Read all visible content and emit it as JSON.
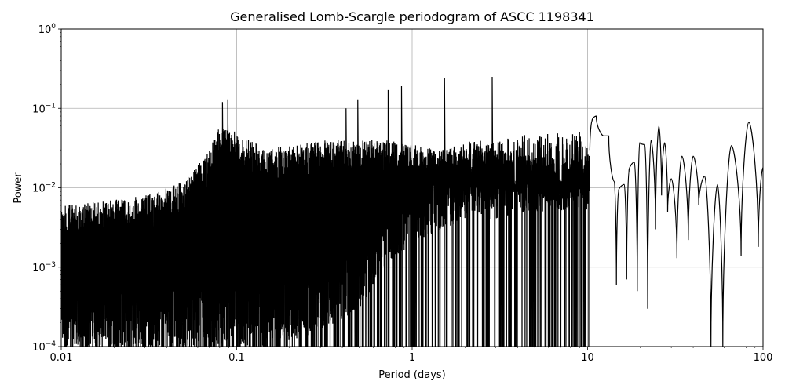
{
  "chart_data": {
    "type": "line",
    "title": "Generalised Lomb-Scargle periodogram of ASCC 1198341",
    "xlabel": "Period (days)",
    "ylabel": "Power",
    "xscale": "log",
    "yscale": "log",
    "xlim": [
      0.01,
      100
    ],
    "ylim": [
      0.0001,
      1
    ],
    "grid": true,
    "legend": null,
    "x_ticks": [
      {
        "value": 0.01,
        "label": "0.01"
      },
      {
        "value": 0.1,
        "label": "0.1"
      },
      {
        "value": 1,
        "label": "1"
      },
      {
        "value": 10,
        "label": "10"
      },
      {
        "value": 100,
        "label": "100"
      }
    ],
    "y_ticks": [
      {
        "value": 1,
        "base": "10",
        "exp": "0"
      },
      {
        "value": 0.1,
        "base": "10",
        "exp": "−1"
      },
      {
        "value": 0.01,
        "base": "10",
        "exp": "−2"
      },
      {
        "value": 0.001,
        "base": "10",
        "exp": "−3"
      },
      {
        "value": 0.0001,
        "base": "10",
        "exp": "−4"
      }
    ],
    "line_color": "#000000",
    "grid_color": "#b0b0b0",
    "noise_envelope": {
      "description": "Dense unresolved oscillation envelope (upper peak level vs period)",
      "period": [
        0.01,
        0.02,
        0.03,
        0.05,
        0.07,
        0.08,
        0.1,
        0.15,
        0.2,
        0.3,
        0.5,
        0.7,
        1.0,
        1.5,
        2.0,
        3.0,
        5.0,
        7.0,
        10.0
      ],
      "upper": [
        0.006,
        0.007,
        0.008,
        0.012,
        0.03,
        0.06,
        0.05,
        0.03,
        0.035,
        0.04,
        0.04,
        0.04,
        0.035,
        0.03,
        0.03,
        0.03,
        0.025,
        0.02,
        0.03
      ],
      "lower_fill": [
        0.0001,
        0.0001,
        0.0001,
        0.0001,
        0.0001,
        0.0001,
        0.0001,
        0.0001,
        0.00012,
        0.00015,
        0.0003,
        0.001,
        0.002,
        0.003,
        0.004,
        0.004,
        0.005,
        0.005,
        0.005
      ]
    },
    "notable_peaks": [
      {
        "period": 0.083,
        "power": 0.12
      },
      {
        "period": 0.089,
        "power": 0.13
      },
      {
        "period": 0.42,
        "power": 0.1
      },
      {
        "period": 0.49,
        "power": 0.13
      },
      {
        "period": 0.73,
        "power": 0.17
      },
      {
        "period": 0.87,
        "power": 0.19
      },
      {
        "period": 1.53,
        "power": 0.24
      },
      {
        "period": 2.86,
        "power": 0.25
      }
    ],
    "long_period_peaks": [
      {
        "period": 10.6,
        "power": 0.07
      },
      {
        "period": 11.2,
        "power": 0.08
      },
      {
        "period": 12.4,
        "power": 0.045
      },
      {
        "period": 13.2,
        "power": 0.045
      },
      {
        "period": 14.2,
        "power": 0.012
      },
      {
        "period": 15.0,
        "power": 0.009
      },
      {
        "period": 16.2,
        "power": 0.011
      },
      {
        "period": 17.2,
        "power": 0.016
      },
      {
        "period": 18.5,
        "power": 0.021
      },
      {
        "period": 19.8,
        "power": 0.037
      },
      {
        "period": 21.2,
        "power": 0.035
      },
      {
        "period": 23.0,
        "power": 0.04
      },
      {
        "period": 25.5,
        "power": 0.06
      },
      {
        "period": 27.5,
        "power": 0.037
      },
      {
        "period": 30.0,
        "power": 0.013
      },
      {
        "period": 34.5,
        "power": 0.025
      },
      {
        "period": 40.0,
        "power": 0.025
      },
      {
        "period": 46.5,
        "power": 0.014
      },
      {
        "period": 55.0,
        "power": 0.011
      },
      {
        "period": 66.0,
        "power": 0.034
      },
      {
        "period": 83.0,
        "power": 0.067
      },
      {
        "period": 100.0,
        "power": 0.018
      }
    ],
    "long_period_troughs": [
      {
        "period": 14.6,
        "power": 0.0006
      },
      {
        "period": 16.7,
        "power": 0.0007
      },
      {
        "period": 19.2,
        "power": 0.0005
      },
      {
        "period": 22.0,
        "power": 0.0003
      },
      {
        "period": 24.4,
        "power": 0.003
      },
      {
        "period": 26.4,
        "power": 0.008
      },
      {
        "period": 28.6,
        "power": 0.005
      },
      {
        "period": 32.3,
        "power": 0.0013
      },
      {
        "period": 37.5,
        "power": 0.0022
      },
      {
        "period": 43.0,
        "power": 0.006
      },
      {
        "period": 50.5,
        "power": 0.0001
      },
      {
        "period": 59.0,
        "power": 0.0001
      },
      {
        "period": 75.0,
        "power": 0.0014
      },
      {
        "period": 94.0,
        "power": 0.0018
      }
    ]
  }
}
